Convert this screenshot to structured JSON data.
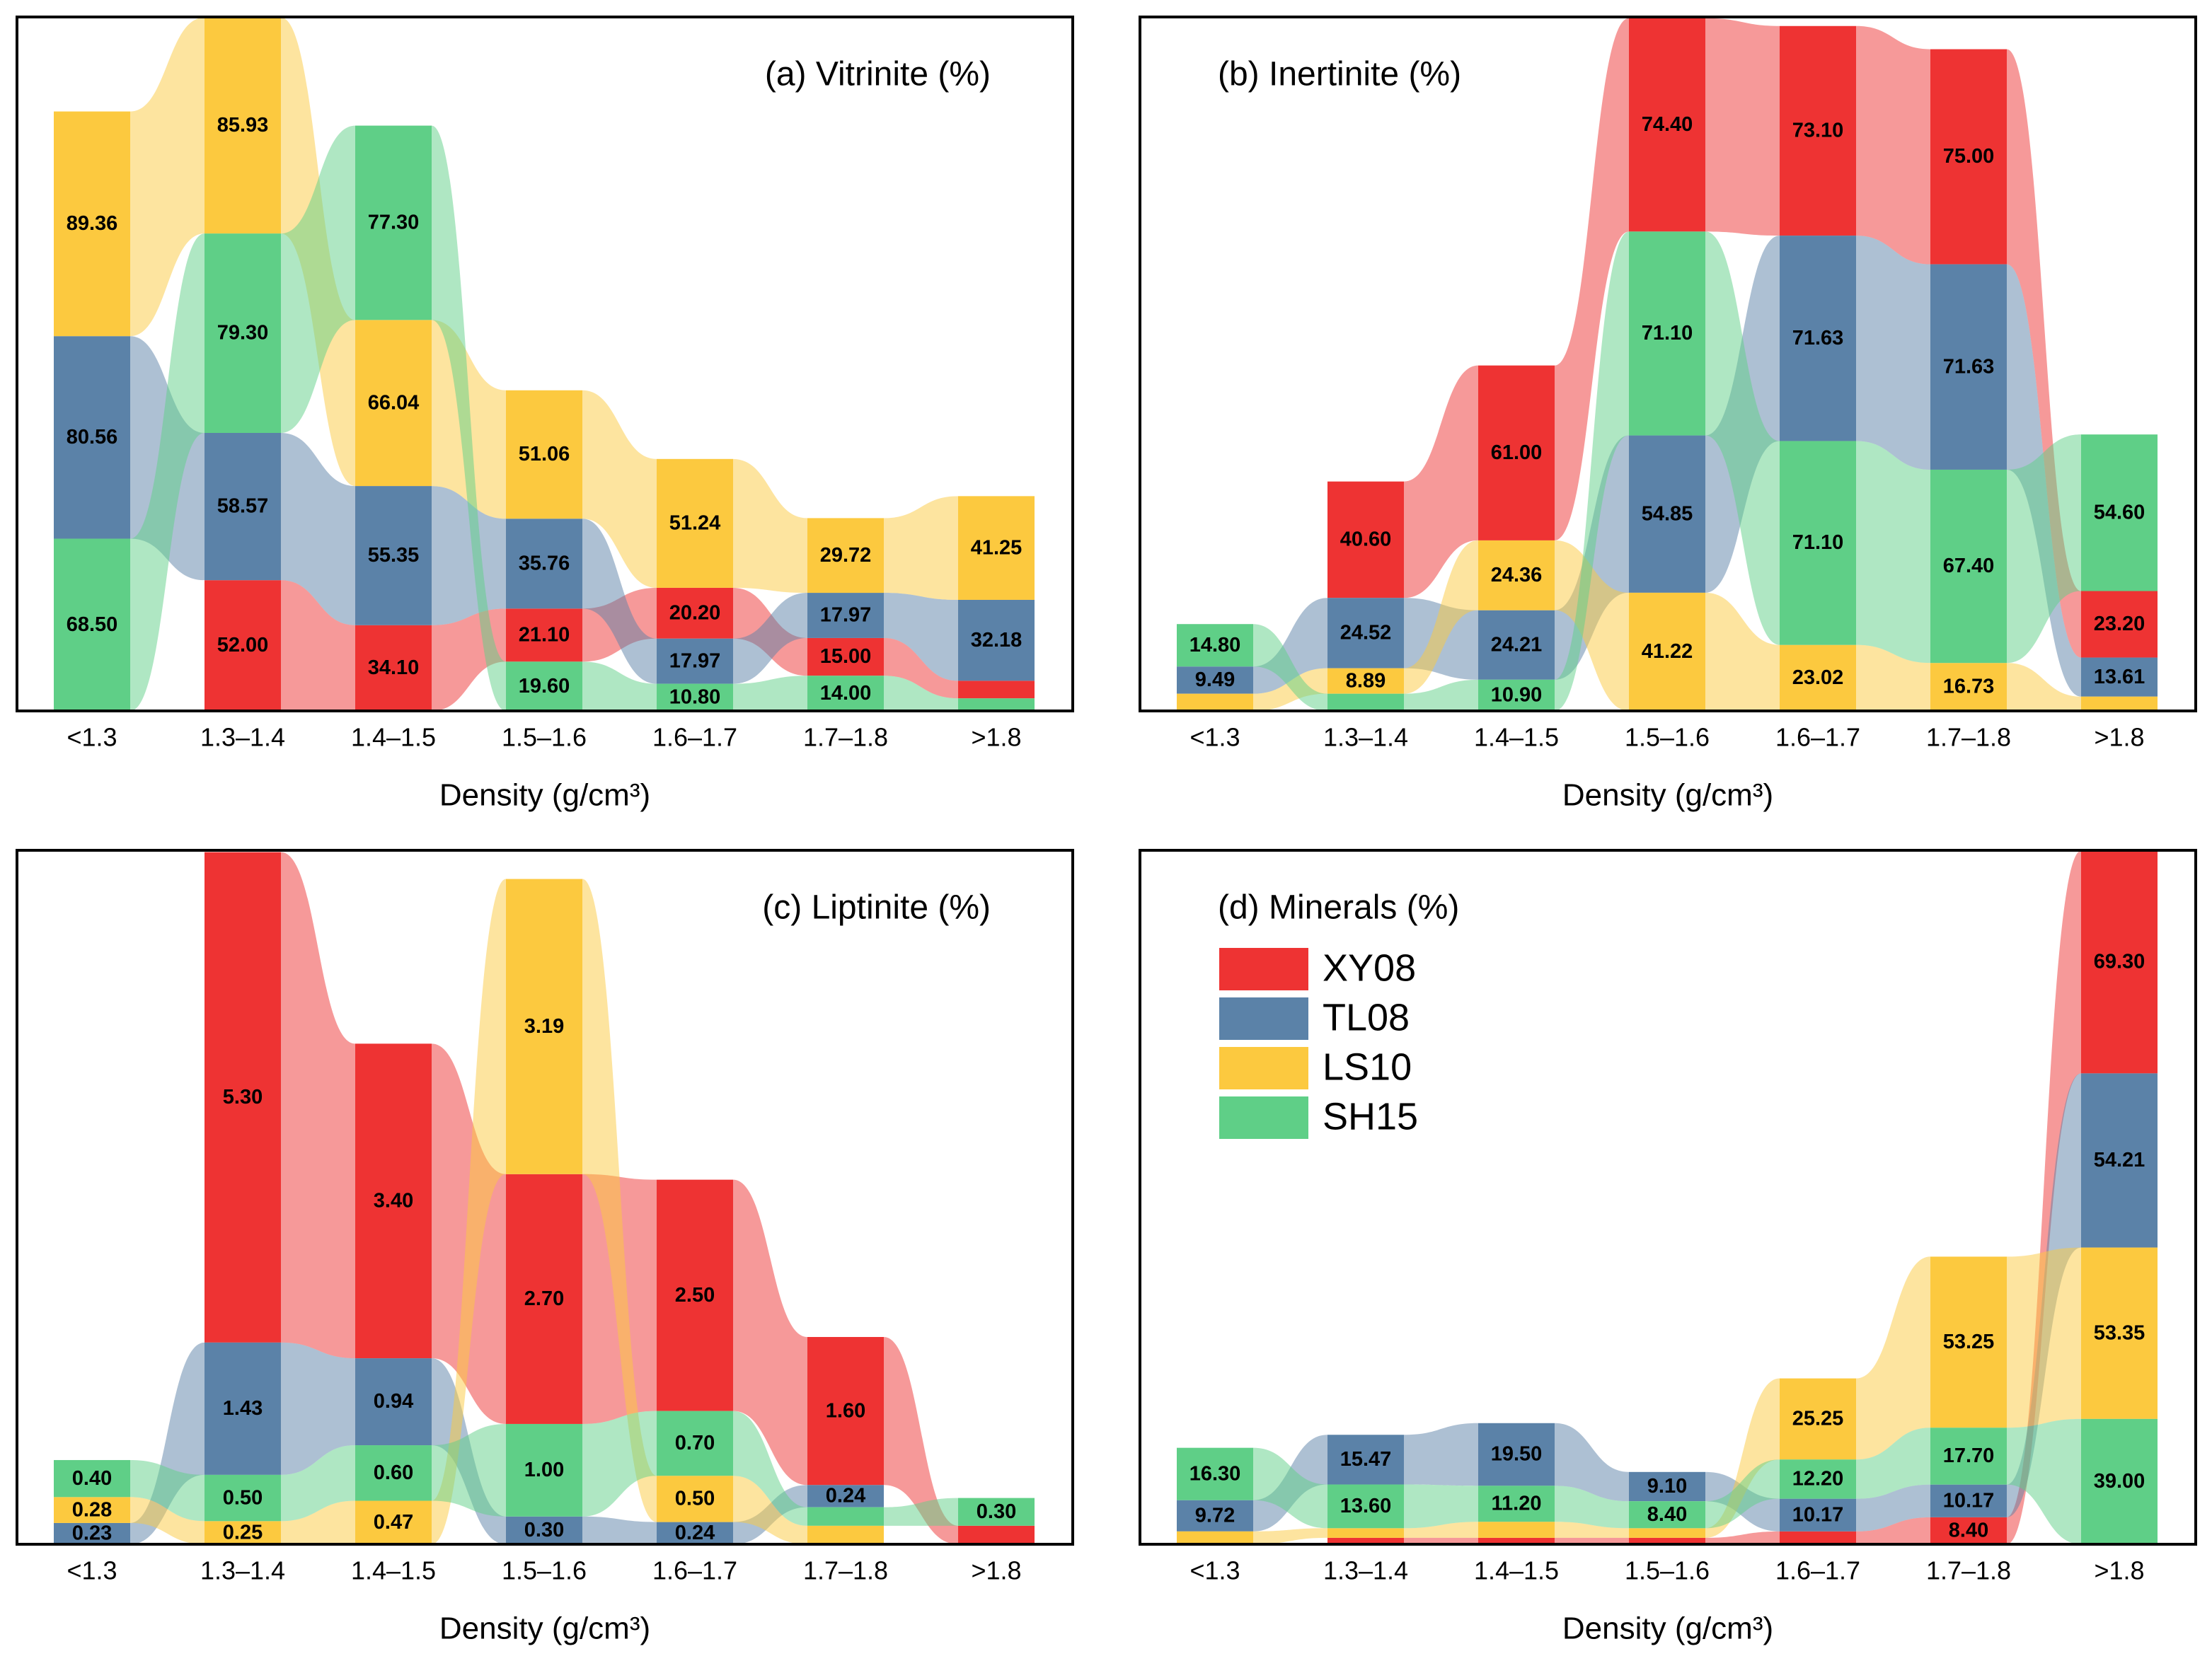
{
  "chart_data": [
    {
      "type": "alluvial",
      "title": "(a) Vitrinite (%)",
      "xlabel": "Density (g/cm³)",
      "categories": [
        "<1.3",
        "1.3–1.4",
        "1.4–1.5",
        "1.5–1.6",
        "1.6–1.7",
        "1.7–1.8",
        ">1.8"
      ],
      "ylim": [
        0,
        276
      ],
      "series": [
        {
          "name": "XY08",
          "color": "#ee3333",
          "values": [
            null,
            52.0,
            34.1,
            21.1,
            20.2,
            15.0,
            7
          ],
          "value_labels": [
            null,
            "52.00",
            "34.10",
            "21.10",
            "20.20",
            "15.00",
            null
          ]
        },
        {
          "name": "TL08",
          "color": "#5b82a8",
          "values": [
            80.56,
            58.57,
            55.35,
            35.76,
            17.97,
            17.97,
            32.18
          ],
          "value_labels": [
            "80.56",
            "58.57",
            "55.35",
            "35.76",
            "17.97",
            "17.97",
            "32.18"
          ]
        },
        {
          "name": "LS10",
          "color": "#fcc93f",
          "values": [
            89.36,
            85.93,
            66.04,
            51.06,
            51.24,
            29.72,
            41.25
          ],
          "value_labels": [
            "89.36",
            "85.93",
            "66.04",
            "51.06",
            "51.24",
            "29.72",
            "41.25"
          ]
        },
        {
          "name": "SH15",
          "color": "#5fcf87",
          "values": [
            68.5,
            79.3,
            77.3,
            19.6,
            10.8,
            14.0,
            5
          ],
          "value_labels": [
            "68.50",
            "79.30",
            "77.30",
            "19.60",
            "10.80",
            "14.00",
            null
          ]
        }
      ]
    },
    {
      "type": "alluvial",
      "title": "(b) Inertinite (%)",
      "xlabel": "Density (g/cm³)",
      "categories": [
        "<1.3",
        "1.3–1.4",
        "1.4–1.5",
        "1.5–1.6",
        "1.6–1.7",
        "1.7–1.8",
        ">1.8"
      ],
      "ylim": [
        0,
        242
      ],
      "series": [
        {
          "name": "XY08",
          "color": "#ee3333",
          "values": [
            null,
            40.6,
            61.0,
            74.4,
            73.1,
            75.0,
            23.2
          ],
          "value_labels": [
            null,
            "40.60",
            "61.00",
            "74.40",
            "73.10",
            "75.00",
            "23.20"
          ]
        },
        {
          "name": "TL08",
          "color": "#5b82a8",
          "values": [
            9.49,
            24.52,
            24.21,
            54.85,
            71.63,
            71.63,
            13.61
          ],
          "value_labels": [
            "9.49",
            "24.52",
            "24.21",
            "54.85",
            "71.63",
            "71.63",
            "13.61"
          ]
        },
        {
          "name": "LS10",
          "color": "#fcc93f",
          "values": [
            6,
            8.89,
            24.36,
            41.22,
            23.02,
            16.73,
            5
          ],
          "value_labels": [
            null,
            "8.89",
            "24.36",
            "41.22",
            "23.02",
            "16.73",
            null
          ]
        },
        {
          "name": "SH15",
          "color": "#5fcf87",
          "values": [
            14.8,
            6,
            10.9,
            71.1,
            71.1,
            67.4,
            54.6
          ],
          "value_labels": [
            "14.80",
            null,
            "10.90",
            "71.10",
            "71.10",
            "67.40",
            "54.60"
          ]
        }
      ]
    },
    {
      "type": "alluvial",
      "title": "(c) Liptinite (%)",
      "xlabel": "Density (g/cm³)",
      "categories": [
        "<1.3",
        "1.3–1.4",
        "1.4–1.5",
        "1.5–1.6",
        "1.6–1.7",
        "1.7–1.8",
        ">1.8"
      ],
      "ylim": [
        0,
        7.5
      ],
      "series": [
        {
          "name": "XY08",
          "color": "#ee3333",
          "values": [
            null,
            5.3,
            3.4,
            2.7,
            2.5,
            1.6,
            0.2
          ],
          "value_labels": [
            null,
            "5.30",
            "3.40",
            "2.70",
            "2.50",
            "1.60",
            null
          ]
        },
        {
          "name": "TL08",
          "color": "#5b82a8",
          "values": [
            0.23,
            1.43,
            0.94,
            0.3,
            0.24,
            0.24,
            null
          ],
          "value_labels": [
            "0.23",
            "1.43",
            "0.94",
            "0.30",
            "0.24",
            "0.24",
            null
          ]
        },
        {
          "name": "LS10",
          "color": "#fcc93f",
          "values": [
            0.28,
            0.25,
            0.47,
            3.19,
            0.5,
            0.2,
            null
          ],
          "value_labels": [
            "0.28",
            "0.25",
            "0.47",
            "3.19",
            "0.50",
            null,
            null
          ]
        },
        {
          "name": "SH15",
          "color": "#5fcf87",
          "values": [
            0.4,
            0.5,
            0.6,
            1.0,
            0.7,
            0.2,
            0.3
          ],
          "value_labels": [
            "0.40",
            "0.50",
            "0.60",
            "1.00",
            "0.70",
            null,
            "0.30"
          ]
        }
      ]
    },
    {
      "type": "alluvial",
      "title": "(d) Minerals (%)",
      "xlabel": "Density (g/cm³)",
      "legend": "upper left",
      "categories": [
        "<1.3",
        "1.3–1.4",
        "1.4–1.5",
        "1.5–1.6",
        "1.6–1.7",
        "1.7–1.8",
        ">1.8"
      ],
      "ylim": [
        0,
        216
      ],
      "series": [
        {
          "name": "XY08",
          "color": "#ee3333",
          "values": [
            null,
            2,
            2,
            2,
            4,
            8.4,
            69.3
          ],
          "value_labels": [
            null,
            null,
            null,
            null,
            null,
            "8.40",
            "69.30"
          ]
        },
        {
          "name": "TL08",
          "color": "#5b82a8",
          "values": [
            9.72,
            15.47,
            19.5,
            9.1,
            10.17,
            10.17,
            54.21
          ],
          "value_labels": [
            "9.72",
            "15.47",
            "19.50",
            "9.10",
            "10.17",
            "10.17",
            "54.21"
          ]
        },
        {
          "name": "LS10",
          "color": "#fcc93f",
          "values": [
            4,
            3,
            5,
            3,
            25.25,
            53.25,
            53.35
          ],
          "value_labels": [
            null,
            null,
            null,
            null,
            "25.25",
            "53.25",
            "53.35"
          ]
        },
        {
          "name": "SH15",
          "color": "#5fcf87",
          "values": [
            16.3,
            13.6,
            11.2,
            8.4,
            12.2,
            17.7,
            39.0
          ],
          "value_labels": [
            "16.30",
            "13.60",
            "11.20",
            "8.40",
            "12.20",
            "17.70",
            "39.00"
          ]
        }
      ]
    }
  ]
}
